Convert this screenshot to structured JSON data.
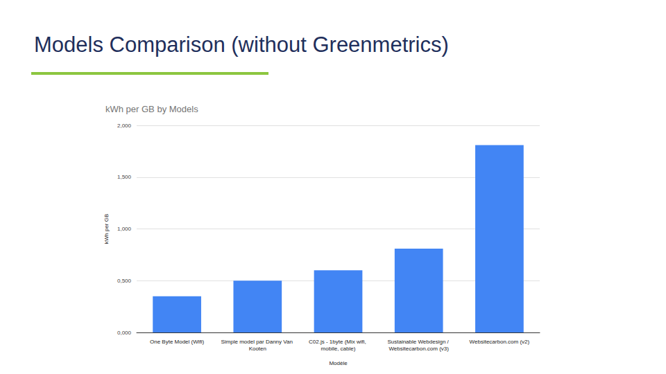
{
  "chart_data": {
    "type": "bar",
    "title": "Models Comparison (without Greenmetrics)",
    "subtitle": "kWh per GB by Models",
    "x_label": "Modèle",
    "y_label": "kWh per GB",
    "categories": [
      "One Byte Model (Wifi)",
      "Simple model par Danny Van Kooten",
      "C02.js - 1byte (Mix wifi, mobile, cable)",
      "Sustainable Webdesign / Websitecarbon.com (v3)",
      "Websitecarbon.com (v2)"
    ],
    "values": [
      0.35,
      0.5,
      0.6,
      0.81,
      1.81
    ],
    "color": "#4285f4",
    "ylim": [
      0,
      2
    ],
    "yticks": [
      {
        "value": 0,
        "label": "0,000"
      },
      {
        "value": 0.5,
        "label": "0,500"
      },
      {
        "value": 1,
        "label": "1,000"
      },
      {
        "value": 1.5,
        "label": "1,500"
      },
      {
        "value": 2,
        "label": "2,000"
      }
    ],
    "grid": true,
    "data_labels": false
  }
}
